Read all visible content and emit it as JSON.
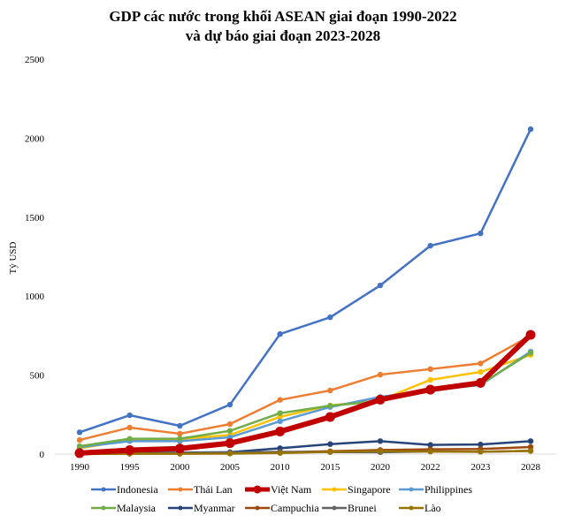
{
  "chart_data": {
    "type": "line",
    "title": [
      "GDP các nước trong khối ASEAN giai đoạn 1990-2022",
      "và dự báo giai đoạn 2023-2028"
    ],
    "xlabel": "",
    "ylabel": "Tỷ USD",
    "ylim": [
      0,
      2500
    ],
    "yticks": [
      "0",
      "500",
      "1000",
      "1500",
      "2000",
      "2500"
    ],
    "grid": false,
    "legend_position": "bottom",
    "categories": [
      "1990",
      "1995",
      "2000",
      "2005",
      "2010",
      "2015",
      "2020",
      "2022",
      "2023",
      "2028"
    ],
    "series": [
      {
        "name": "Indonesia",
        "color": "#4472C4",
        "values": [
          138,
          246,
          179,
          313,
          760,
          866,
          1068,
          1319,
          1397,
          2057
        ]
      },
      {
        "name": "Thái Lan",
        "color": "#ED7D31",
        "values": [
          89,
          168,
          129,
          190,
          343,
          403,
          503,
          538,
          574,
          749
        ]
      },
      {
        "name": "Singapore",
        "color": "#FFC000",
        "values": [
          36,
          90,
          95,
          121,
          236,
          308,
          341,
          470,
          520,
          628
        ]
      },
      {
        "name": "Philippines",
        "color": "#5B9BD5",
        "values": [
          44,
          82,
          82,
          106,
          208,
          298,
          362,
          404,
          437,
          649
        ]
      },
      {
        "name": "Malaysia",
        "color": "#70AD47",
        "values": [
          50,
          97,
          97,
          147,
          259,
          306,
          336,
          410,
          442,
          641
        ]
      },
      {
        "name": "Myanmar",
        "color": "#264478",
        "values": [
          6,
          8,
          9,
          12,
          37,
          63,
          82,
          58,
          61,
          82
        ]
      },
      {
        "name": "Campuchia",
        "color": "#9E480E",
        "values": [
          1,
          3,
          4,
          6,
          11,
          18,
          26,
          30,
          32,
          45
        ]
      },
      {
        "name": "Brunei",
        "color": "#636363",
        "values": [
          4,
          5,
          6,
          10,
          14,
          13,
          12,
          17,
          15,
          20
        ]
      },
      {
        "name": "Lào",
        "color": "#997300",
        "values": [
          1,
          2,
          2,
          3,
          7,
          14,
          19,
          16,
          15,
          20
        ]
      },
      {
        "name": "Việt Nam",
        "color": "#C00000",
        "emphasis": true,
        "values": [
          6,
          25,
          35,
          69,
          143,
          235,
          345,
          408,
          451,
          755
        ]
      }
    ],
    "legend_order": [
      "Indonesia",
      "Thái Lan",
      "Việt Nam",
      "Singapore",
      "Philippines",
      "Malaysia",
      "Myanmar",
      "Campuchia",
      "Brunei",
      "Lào"
    ]
  }
}
